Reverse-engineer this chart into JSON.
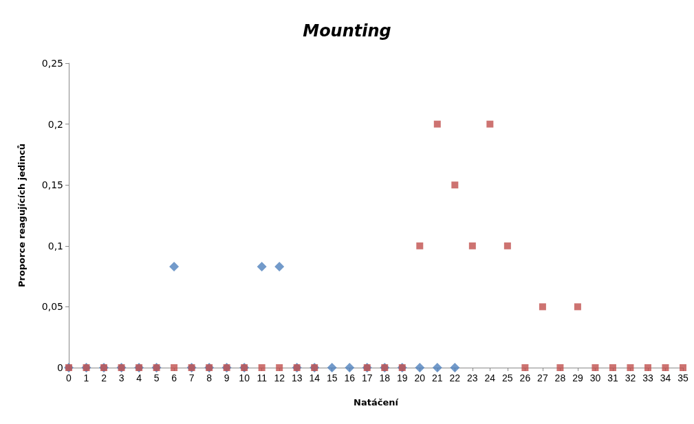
{
  "chart_data": {
    "type": "scatter",
    "title": "Mounting",
    "xlabel": "Natáčení",
    "ylabel": "Proporce reagujících jedinců",
    "x": [
      0,
      1,
      2,
      3,
      4,
      5,
      6,
      7,
      8,
      9,
      10,
      11,
      12,
      13,
      14,
      15,
      16,
      17,
      18,
      19,
      20,
      21,
      22,
      23,
      24,
      25,
      26,
      27,
      28,
      29,
      30,
      31,
      32,
      33,
      34,
      35
    ],
    "series": [
      {
        "color": "#4f81bd",
        "marker": "diamond",
        "values": [
          0,
          0,
          0,
          0,
          0,
          0,
          0.083,
          0,
          0,
          0,
          0,
          0.083,
          0.083,
          0,
          0,
          0,
          0,
          0,
          0,
          0,
          0,
          0,
          0,
          null,
          null,
          null,
          null,
          null,
          null,
          null,
          null,
          null,
          null,
          null,
          null,
          null
        ]
      },
      {
        "color": "#c0504d",
        "marker": "square",
        "values": [
          0,
          0,
          0,
          0,
          0,
          0,
          0,
          0,
          0,
          0,
          0,
          0,
          0,
          0,
          0,
          null,
          null,
          0,
          0,
          0,
          0.1,
          0.2,
          0.15,
          0.1,
          0.2,
          0.1,
          0,
          0.05,
          0,
          0.05,
          0,
          0,
          0,
          0,
          0,
          0
        ]
      }
    ],
    "xlim": [
      0,
      35
    ],
    "xticks": [
      0,
      1,
      2,
      3,
      4,
      5,
      6,
      7,
      8,
      9,
      10,
      11,
      12,
      13,
      14,
      15,
      16,
      17,
      18,
      19,
      20,
      21,
      22,
      23,
      24,
      25,
      26,
      27,
      28,
      29,
      30,
      31,
      32,
      33,
      34,
      35
    ],
    "ylim": [
      0,
      0.25
    ],
    "yticks": [
      0,
      {
        "value": 0.05,
        "label": "0,05"
      },
      {
        "value": 0.1,
        "label": "0,1"
      },
      {
        "value": 0.15,
        "label": "0,15"
      },
      {
        "value": 0.2,
        "label": "0,2"
      },
      {
        "value": 0.25,
        "label": "0,25"
      }
    ],
    "grid": false
  }
}
